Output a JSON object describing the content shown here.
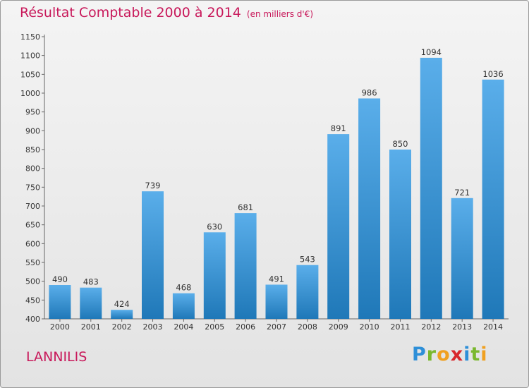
{
  "header": {
    "title": "Résultat Comptable 2000 à 2014",
    "unit": "(en milliers d'€)"
  },
  "footer": {
    "city": "LANNILIS",
    "logo_letters": [
      "P",
      "r",
      "o",
      "x",
      "i",
      "t",
      "i"
    ],
    "logo_colors": [
      "#2e8fd8",
      "#7ab82e",
      "#f0a020",
      "#d8262b",
      "#2e8fd8",
      "#7ab82e",
      "#f0a020"
    ]
  },
  "colors": {
    "title": "#c8185a",
    "bar_light": "#5aaeea",
    "bar_dark": "#1f78b8"
  },
  "chart_data": {
    "type": "bar",
    "categories": [
      "2000",
      "2001",
      "2002",
      "2003",
      "2004",
      "2005",
      "2006",
      "2007",
      "2008",
      "2009",
      "2010",
      "2011",
      "2012",
      "2013",
      "2014"
    ],
    "values": [
      490,
      483,
      424,
      739,
      468,
      630,
      681,
      491,
      543,
      891,
      986,
      850,
      1094,
      721,
      1036
    ],
    "ylim": [
      400,
      1150
    ],
    "yticks": [
      400,
      450,
      500,
      550,
      600,
      650,
      700,
      750,
      800,
      850,
      900,
      950,
      1000,
      1050,
      1100,
      1150
    ],
    "grid": false
  }
}
